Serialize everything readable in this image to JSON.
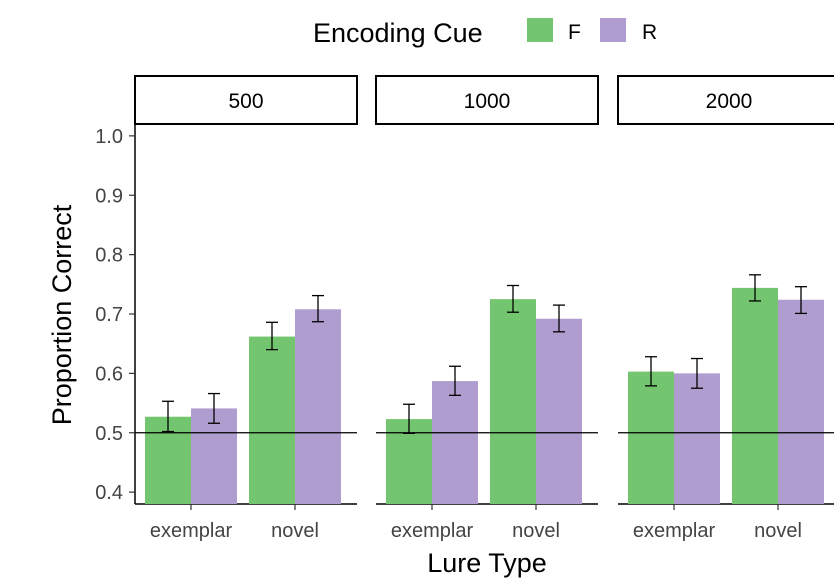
{
  "legend": {
    "title": "Encoding Cue",
    "items": [
      {
        "label": "F",
        "color": "#73c66f"
      },
      {
        "label": "R",
        "color": "#b09dcf"
      }
    ]
  },
  "chart_data": {
    "type": "bar",
    "xlabel": "Lure Type",
    "ylabel": "Proportion Correct",
    "ylim": [
      0.38,
      1.02
    ],
    "yticks": [
      "0.4",
      "0.5",
      "0.6",
      "0.7",
      "0.8",
      "0.9",
      "1.0"
    ],
    "reference_line": 0.5,
    "categories": [
      "exemplar",
      "novel"
    ],
    "grid": false,
    "legend_position": "top",
    "panels": [
      {
        "label": "500",
        "series": [
          {
            "name": "F",
            "values": [
              0.527,
              0.662
            ],
            "error": [
              [
                0.502,
                0.553
              ],
              [
                0.64,
                0.686
              ]
            ]
          },
          {
            "name": "R",
            "values": [
              0.541,
              0.708
            ],
            "error": [
              [
                0.516,
                0.566
              ],
              [
                0.687,
                0.731
              ]
            ]
          }
        ]
      },
      {
        "label": "1000",
        "series": [
          {
            "name": "F",
            "values": [
              0.523,
              0.725
            ],
            "error": [
              [
                0.499,
                0.548
              ],
              [
                0.703,
                0.748
              ]
            ]
          },
          {
            "name": "R",
            "values": [
              0.587,
              0.692
            ],
            "error": [
              [
                0.563,
                0.612
              ],
              [
                0.67,
                0.715
              ]
            ]
          }
        ]
      },
      {
        "label": "2000",
        "series": [
          {
            "name": "F",
            "values": [
              0.603,
              0.744
            ],
            "error": [
              [
                0.579,
                0.628
              ],
              [
                0.722,
                0.766
              ]
            ]
          },
          {
            "name": "R",
            "values": [
              0.6,
              0.724
            ],
            "error": [
              [
                0.575,
                0.625
              ],
              [
                0.701,
                0.746
              ]
            ]
          }
        ]
      }
    ]
  }
}
